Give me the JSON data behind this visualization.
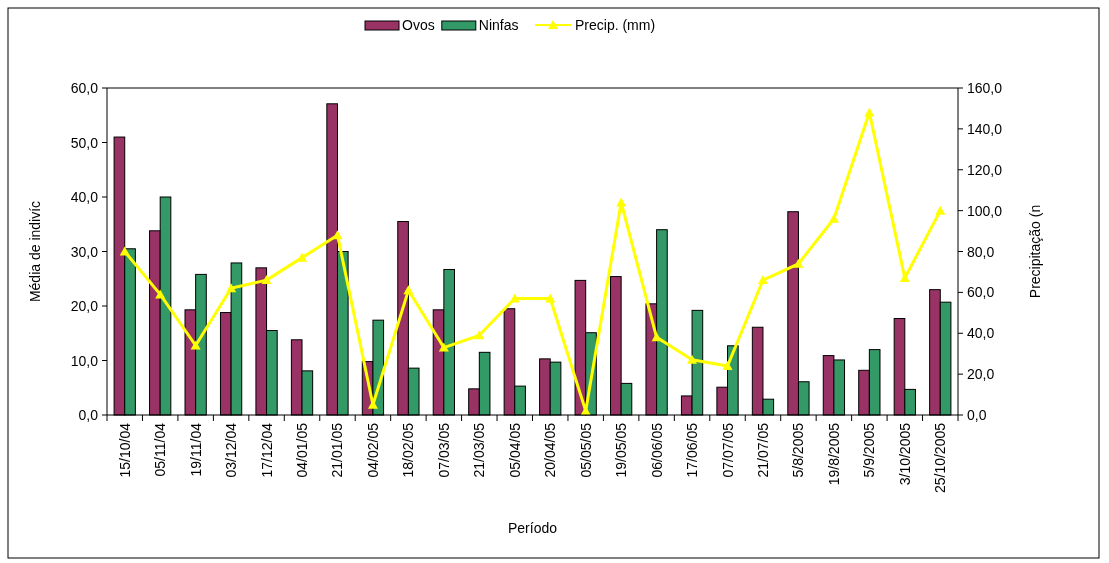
{
  "chart_data": {
    "type": "bar",
    "xlabel": "Período",
    "ylabel": "Média de indivíc",
    "y2label": "Precipitação (n",
    "categories": [
      "15/10/04",
      "05/11/04",
      "19/11/04",
      "03/12/04",
      "17/12/04",
      "04/01/05",
      "21/01/05",
      "04/02/05",
      "18/02/05",
      "07/03/05",
      "21/03/05",
      "05/04/05",
      "20/04/05",
      "05/05/05",
      "19/05/05",
      "06/06/05",
      "17/06/05",
      "07/07/05",
      "21/07/05",
      "5/8/2005",
      "19/8/2005",
      "5/9/2005",
      "3/10/2005",
      "25/10/2005"
    ],
    "series": [
      {
        "name": "Ovos",
        "color": "#993366",
        "values": [
          51,
          33.8,
          19.3,
          18.8,
          27,
          13.8,
          57.1,
          9.8,
          35.5,
          19.3,
          4.8,
          19.5,
          10.3,
          24.7,
          25.4,
          20.4,
          3.5,
          5.1,
          16.1,
          37.3,
          10.9,
          8.2,
          17.7,
          23
        ]
      },
      {
        "name": "Ninfas",
        "color": "#339966",
        "values": [
          30.5,
          40,
          25.8,
          27.9,
          15.5,
          8.1,
          30,
          17.4,
          8.6,
          26.7,
          11.5,
          5.3,
          9.7,
          15.1,
          5.8,
          34,
          19.2,
          12.7,
          2.9,
          6.1,
          10.1,
          12,
          4.7,
          20.7
        ]
      },
      {
        "name": "Precip. (mm)",
        "type": "line",
        "axis": "y2",
        "color": "#ffff00",
        "marker": "triangle",
        "values": [
          80,
          59,
          34,
          62,
          66,
          77,
          88,
          5,
          61,
          33,
          39,
          57,
          57,
          2,
          104,
          38,
          27,
          24,
          66,
          74,
          96,
          148,
          67,
          100
        ]
      }
    ],
    "ylim": [
      0,
      60
    ],
    "yticks": [
      {
        "value": 0,
        "label": "0,0"
      },
      {
        "value": 10,
        "label": "10,0"
      },
      {
        "value": 20,
        "label": "20,0"
      },
      {
        "value": 30,
        "label": "30,0"
      },
      {
        "value": 40,
        "label": "40,0"
      },
      {
        "value": 50,
        "label": "50,0"
      },
      {
        "value": 60,
        "label": "60,0"
      }
    ],
    "y2lim": [
      0,
      160
    ],
    "y2ticks": [
      {
        "value": 0,
        "label": "0,0"
      },
      {
        "value": 20,
        "label": "20,0"
      },
      {
        "value": 40,
        "label": "40,0"
      },
      {
        "value": 60,
        "label": "60,0"
      },
      {
        "value": 80,
        "label": "80,0"
      },
      {
        "value": 100,
        "label": "100,0"
      },
      {
        "value": 120,
        "label": "120,0"
      },
      {
        "value": 140,
        "label": "140,0"
      },
      {
        "value": 160,
        "label": "160,0"
      }
    ],
    "grid": false,
    "legend": "top"
  }
}
